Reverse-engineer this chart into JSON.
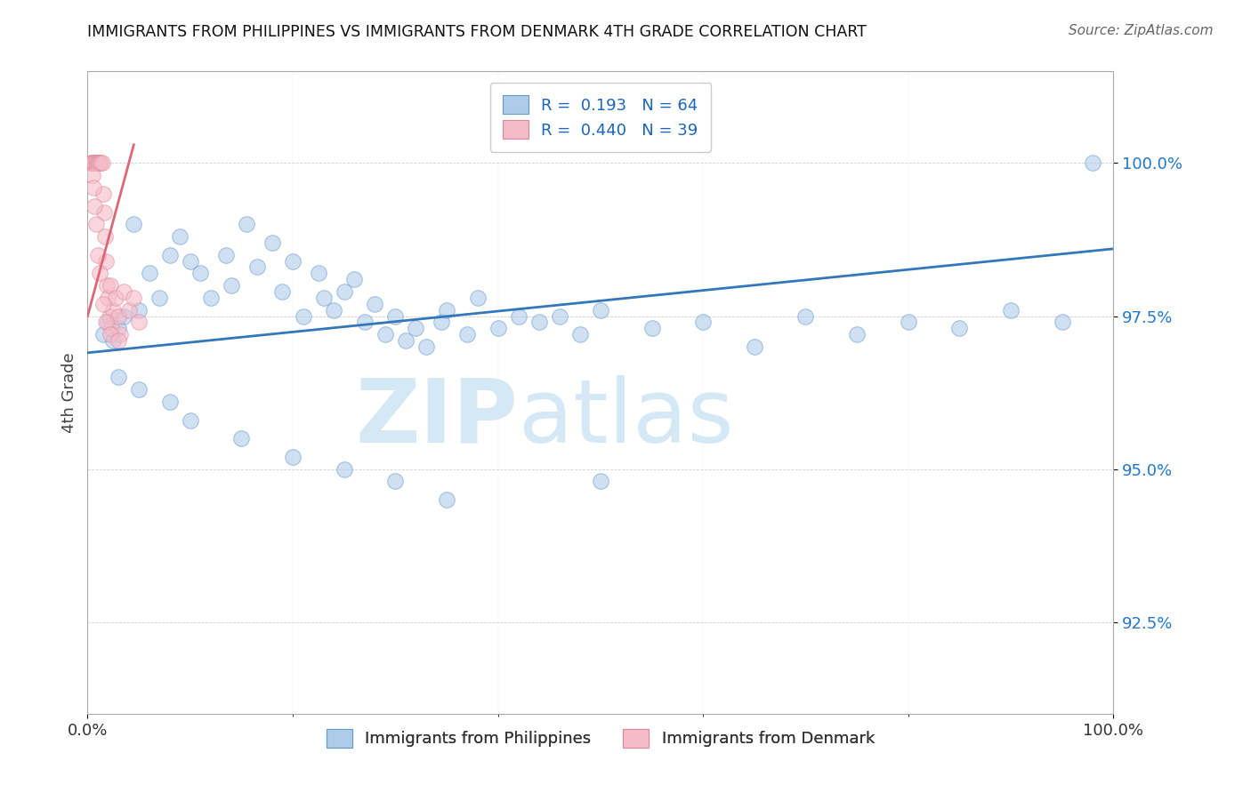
{
  "title": "IMMIGRANTS FROM PHILIPPINES VS IMMIGRANTS FROM DENMARK 4TH GRADE CORRELATION CHART",
  "source": "Source: ZipAtlas.com",
  "ylabel": "4th Grade",
  "blue_color": "#aecce8",
  "blue_edge_color": "#6699cc",
  "blue_line_color": "#3377bb",
  "pink_color": "#f5bbc8",
  "pink_edge_color": "#dd8899",
  "pink_line_color": "#dd6677",
  "legend_blue_label": "R =  0.193   N = 64",
  "legend_pink_label": "R =  0.440   N = 39",
  "bottom_legend_blue": "Immigrants from Philippines",
  "bottom_legend_pink": "Immigrants from Denmark",
  "xlim": [
    0.0,
    100.0
  ],
  "ylim": [
    91.0,
    101.5
  ],
  "yticks": [
    92.5,
    95.0,
    97.5,
    100.0
  ],
  "ytick_labels": [
    "92.5%",
    "95.0%",
    "97.5%",
    "100.0%"
  ],
  "blue_line_x0": 0,
  "blue_line_x1": 100,
  "blue_line_y0": 96.9,
  "blue_line_y1": 98.6,
  "pink_line_x0": 0,
  "pink_line_x1": 4.5,
  "pink_line_y0": 97.5,
  "pink_line_y1": 100.3,
  "blue_pts_x": [
    1.5,
    2.0,
    2.5,
    3.0,
    3.5,
    4.5,
    5.0,
    6.0,
    7.0,
    8.0,
    9.0,
    10.0,
    11.0,
    12.0,
    13.5,
    14.0,
    15.5,
    16.5,
    18.0,
    19.0,
    20.0,
    21.0,
    22.5,
    23.0,
    24.0,
    25.0,
    26.0,
    27.0,
    28.0,
    29.0,
    30.0,
    31.0,
    32.0,
    33.0,
    34.5,
    35.0,
    37.0,
    38.0,
    40.0,
    42.0,
    44.0,
    46.0,
    48.0,
    50.0,
    55.0,
    60.0,
    65.0,
    70.0,
    75.0,
    80.0,
    85.0,
    90.0,
    95.0,
    98.0,
    3.0,
    5.0,
    8.0,
    10.0,
    15.0,
    20.0,
    25.0,
    30.0,
    35.0,
    50.0
  ],
  "blue_pts_y": [
    97.2,
    97.4,
    97.1,
    97.3,
    97.5,
    99.0,
    97.6,
    98.2,
    97.8,
    98.5,
    98.8,
    98.4,
    98.2,
    97.8,
    98.5,
    98.0,
    99.0,
    98.3,
    98.7,
    97.9,
    98.4,
    97.5,
    98.2,
    97.8,
    97.6,
    97.9,
    98.1,
    97.4,
    97.7,
    97.2,
    97.5,
    97.1,
    97.3,
    97.0,
    97.4,
    97.6,
    97.2,
    97.8,
    97.3,
    97.5,
    97.4,
    97.5,
    97.2,
    97.6,
    97.3,
    97.4,
    97.0,
    97.5,
    97.2,
    97.4,
    97.3,
    97.6,
    97.4,
    100.0,
    96.5,
    96.3,
    96.1,
    95.8,
    95.5,
    95.2,
    95.0,
    94.8,
    94.5,
    94.8
  ],
  "pink_pts_x": [
    0.3,
    0.4,
    0.5,
    0.6,
    0.7,
    0.8,
    0.9,
    1.0,
    1.1,
    1.2,
    1.3,
    1.4,
    1.5,
    1.6,
    1.7,
    1.8,
    1.9,
    2.0,
    2.1,
    2.2,
    2.3,
    2.5,
    2.7,
    3.0,
    3.2,
    3.5,
    4.0,
    4.5,
    5.0,
    0.5,
    0.6,
    0.7,
    0.8,
    1.0,
    1.2,
    1.5,
    1.8,
    2.2,
    3.0
  ],
  "pink_pts_y": [
    100.0,
    100.0,
    100.0,
    100.0,
    100.0,
    100.0,
    100.0,
    100.0,
    100.0,
    100.0,
    100.0,
    100.0,
    99.5,
    99.2,
    98.8,
    98.4,
    98.0,
    97.8,
    97.5,
    98.0,
    97.3,
    97.6,
    97.8,
    97.5,
    97.2,
    97.9,
    97.6,
    97.8,
    97.4,
    99.8,
    99.6,
    99.3,
    99.0,
    98.5,
    98.2,
    97.7,
    97.4,
    97.2,
    97.1
  ]
}
